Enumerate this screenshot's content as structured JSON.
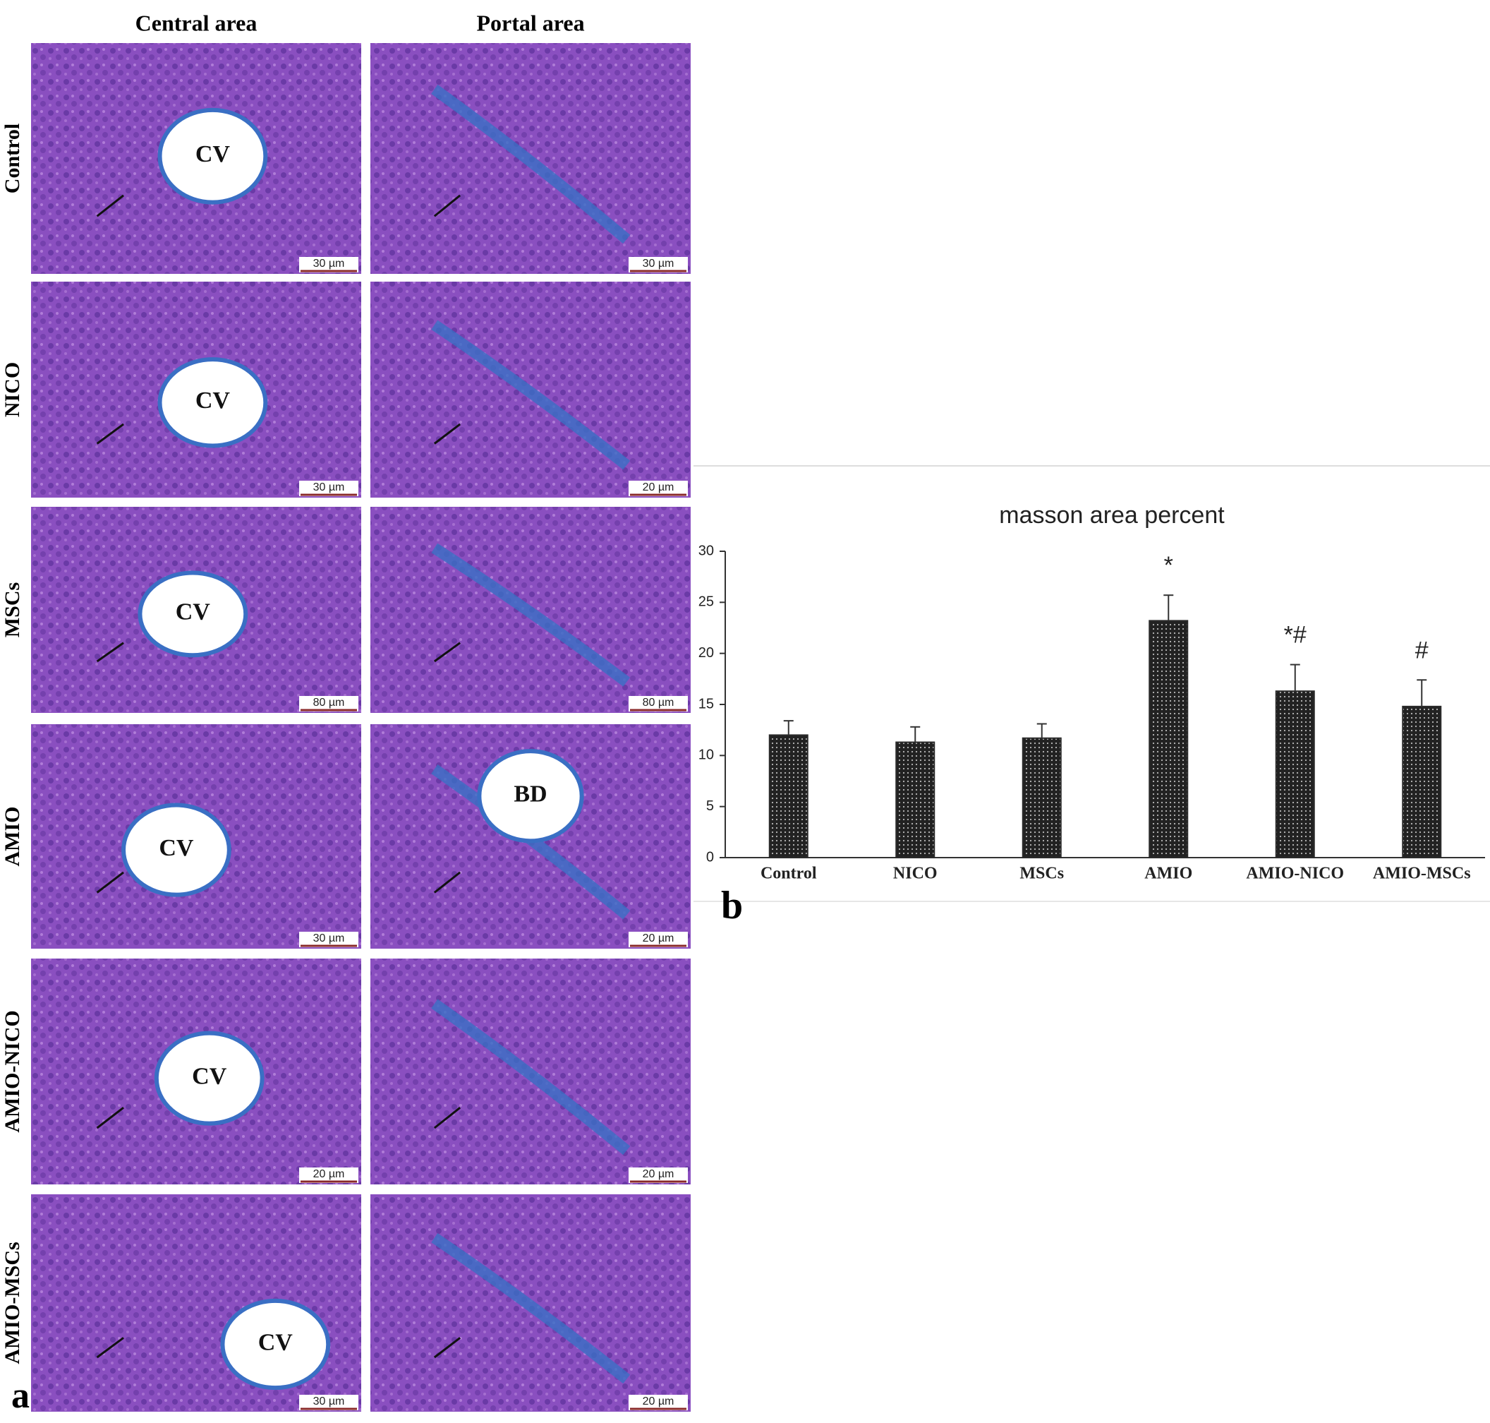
{
  "figure": {
    "panel_a": "a",
    "panel_b": "b",
    "columns": [
      "Central area",
      "Portal area"
    ],
    "rows": [
      {
        "label": "Control",
        "panels": [
          {
            "labels": [
              "CV"
            ],
            "scale": "30 µm"
          },
          {
            "scale": "30 µm"
          }
        ]
      },
      {
        "label": "NICO",
        "panels": [
          {
            "labels": [
              "CV"
            ],
            "scale": "30 µm"
          },
          {
            "scale": "20 µm"
          }
        ]
      },
      {
        "label": "MSCs",
        "panels": [
          {
            "labels": [
              "CV"
            ],
            "scale": "80 µm"
          },
          {
            "scale": "80 µm"
          }
        ]
      },
      {
        "label": "AMIO",
        "panels": [
          {
            "labels": [
              "CV"
            ],
            "scale": "30 µm"
          },
          {
            "labels": [
              "BD"
            ],
            "scale": "20 µm"
          }
        ]
      },
      {
        "label": "AMIO-NICO",
        "panels": [
          {
            "labels": [
              "CV"
            ],
            "scale": "20 µm"
          },
          {
            "scale": "20 µm"
          }
        ]
      },
      {
        "label": "AMIO-MSCs",
        "panels": [
          {
            "labels": [
              "CV"
            ],
            "scale": "30 µm"
          },
          {
            "scale": "20 µm"
          }
        ]
      }
    ]
  },
  "chart_data": {
    "type": "bar",
    "title": "masson area percent",
    "categories": [
      "Control",
      "NICO",
      "MSCs",
      "AMIO",
      "AMIO-NICO",
      "AMIO-MSCs"
    ],
    "values": [
      12,
      11.3,
      11.7,
      23.2,
      16.3,
      14.8
    ],
    "errors": [
      1.4,
      1.5,
      1.4,
      2.5,
      2.6,
      2.6
    ],
    "significance": [
      null,
      null,
      null,
      "*",
      "*#",
      "#"
    ],
    "color": "#2b2b2b",
    "ylim": [
      0,
      30
    ],
    "yticks": [
      0,
      5,
      10,
      15,
      20,
      25,
      30
    ]
  }
}
